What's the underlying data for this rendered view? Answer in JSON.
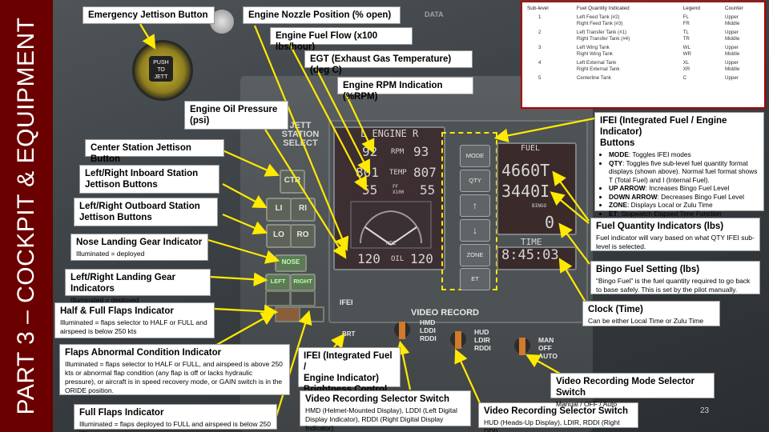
{
  "slide": {
    "side_title": "PART 3 – COCKPIT & EQUIPMENT",
    "page_number": "23",
    "accent_color": "#6b0000",
    "arrow_color": "#ffea00"
  },
  "panel": {
    "push_to_jett": "PUSH TO\nJETT",
    "jett_station_select": "JETT\nSTATION\nSELECT",
    "ctr": "CTR",
    "li": "LI",
    "ri": "RI",
    "lo": "LO",
    "ro": "RO",
    "nose": "NOSE",
    "left": "LEFT",
    "right": "RIGHT",
    "ifei_label": "IFEI",
    "brt_label": "BRT",
    "video_record": "VIDEO RECORD",
    "hmd": "HMD",
    "lddi": "LDDI",
    "rddi": "RDDI",
    "hud": "HUD",
    "ldir": "LDIR",
    "rddi2": "RDDI",
    "man": "MAN",
    "off": "OFF",
    "auto": "AUTO",
    "top_text_1": "031",
    "top_text_2": "DATA"
  },
  "ifei": {
    "engine_label": "L  ENGINE  R",
    "rpm_l": "92",
    "rpm_label": "RPM",
    "rpm_r": "93",
    "temp_l": "801",
    "temp_label": "TEMP",
    "temp_r": "807",
    "ff_l": "55",
    "ff_label": "FF\nX100",
    "ff_r": "55",
    "noz_label": "NOZ",
    "oil_l": "120",
    "oil_label": "OIL",
    "oil_r": "120",
    "fuel_label": "FUEL",
    "fuel_total": "4660T",
    "fuel_internal": "3440I",
    "bingo_label": "BINGO",
    "bingo_value": "0",
    "time_label": "TIME",
    "time_value": "8:45:03",
    "buttons": [
      "MODE",
      "QTY",
      "↑",
      "↓",
      "ZONE",
      "ET"
    ]
  },
  "fuel_table": {
    "headers": [
      "Sub-level",
      "Fuel Quantity Indicated",
      "Legend",
      "Counter"
    ],
    "rows": [
      {
        "level": "1",
        "names": "Left Feed Tank (#2)\nRight Feed Tank (#3)",
        "legend": "FL\nFR",
        "counter": "Upper\nMiddle"
      },
      {
        "level": "2",
        "names": "Left Transfer Tank (#1)\nRight Transfer Tank (#4)",
        "legend": "TL\nTR",
        "counter": "Upper\nMiddle"
      },
      {
        "level": "3",
        "names": "Left Wing Tank\nRight Wing Tank",
        "legend": "WL\nWR",
        "counter": "Upper\nMiddle"
      },
      {
        "level": "4",
        "names": "Left External Tank\nRight External Tank",
        "legend": "XL\nXR",
        "counter": "Upper\nMiddle"
      },
      {
        "level": "5",
        "names": "Centerline Tank",
        "legend": "C",
        "counter": "Upper"
      }
    ]
  },
  "callouts": {
    "emergency_jettison": "Emergency Jettison Button",
    "nozzle_position": "Engine Nozzle Position (% open)",
    "fuel_flow": "Engine Fuel Flow  (x100 lbs/hour)",
    "egt": "EGT (Exhaust Gas Temperature) (deg C)",
    "rpm": "Engine RPM Indication (%RPM)",
    "oil_pressure": "Engine Oil Pressure\n(psi)",
    "center_jettison": "Center Station Jettison Button",
    "inboard_jettison": "Left/Right Inboard Station\nJettison Buttons",
    "outboard_jettison": "Left/Right Outboard Station\nJettison Buttons",
    "nose_gear_title": "Nose Landing Gear Indicator",
    "nose_gear_desc": "Illuminated = deployed",
    "lr_gear_title": "Left/Right Landing Gear Indicators",
    "lr_gear_desc": "Illuminated = deployed",
    "half_full_title": "Half & Full Flaps Indicator",
    "half_full_desc": "Illuminated = flaps selector to HALF or FULL and airspeed is below 250 kts",
    "flaps_abnormal_title": "Flaps Abnormal Condition Indicator",
    "flaps_abnormal_desc": "Illuminated = flaps selector to HALF or FULL, and airspeed is above 250 kts or abnormal flap condition (any flap is off or lacks hydraulic pressure), or aircraft is in speed recovery mode, or GAIN switch is in the ORIDE position.",
    "full_flaps_title": "Full Flaps Indicator",
    "full_flaps_desc": "Illuminated = flaps deployed to FULL and airspeed is below 250 kts",
    "ifei_brightness": "IFEI (Integrated Fuel /\nEngine Indicator)\nBrightness Control",
    "video_sel1_title": "Video Recording Selector Switch",
    "video_sel1_desc": "HMD (Helmet-Mounted Display), LDDI (Left Digital Display Indicator), RDDI (Right Digital Display Indicator)",
    "video_sel2_title": "Video Recording Selector Switch",
    "video_sel2_desc": "HUD (Heads-Up Display), LDIR, RDDI (Right DDI)",
    "video_mode_title": "Video Recording Mode Selector Switch",
    "video_mode_desc": "Manual / OFF / Auto",
    "clock_title": "Clock (Time)",
    "clock_desc": "Can be either Local Time or Zulu Time",
    "bingo_title": "Bingo Fuel Setting (lbs)",
    "bingo_desc": "“Bingo Fuel” is the fuel quantity required to go back to base safely. This is set by the pilot manually.",
    "fuel_qty_title": "Fuel Quantity Indicators (lbs)",
    "fuel_qty_desc": "Fuel indicator will vary based on what QTY IFEI sub-level is selected.",
    "ifei_buttons_title": "IFEI (Integrated Fuel / Engine Indicator)\nButtons",
    "ifei_buttons_items": [
      {
        "key": "MODE",
        "text": ": Toggles IFEI modes"
      },
      {
        "key": "QTY",
        "text": ": Toggles five sub-level fuel quantity format displays (shown above). Normal fuel format shows T (Total Fuel) and I (Internal Fuel)."
      },
      {
        "key": "UP ARROW",
        "text": ":  Increases Bingo Fuel Level"
      },
      {
        "key": "DOWN ARROW",
        "text": ":  Decreases Bingo Fuel Level"
      },
      {
        "key": "ZONE",
        "text": ": Displays Local or Zulu Time"
      },
      {
        "key": "ET",
        "text": ": Stopwatch Elapsed Time Function"
      }
    ]
  }
}
